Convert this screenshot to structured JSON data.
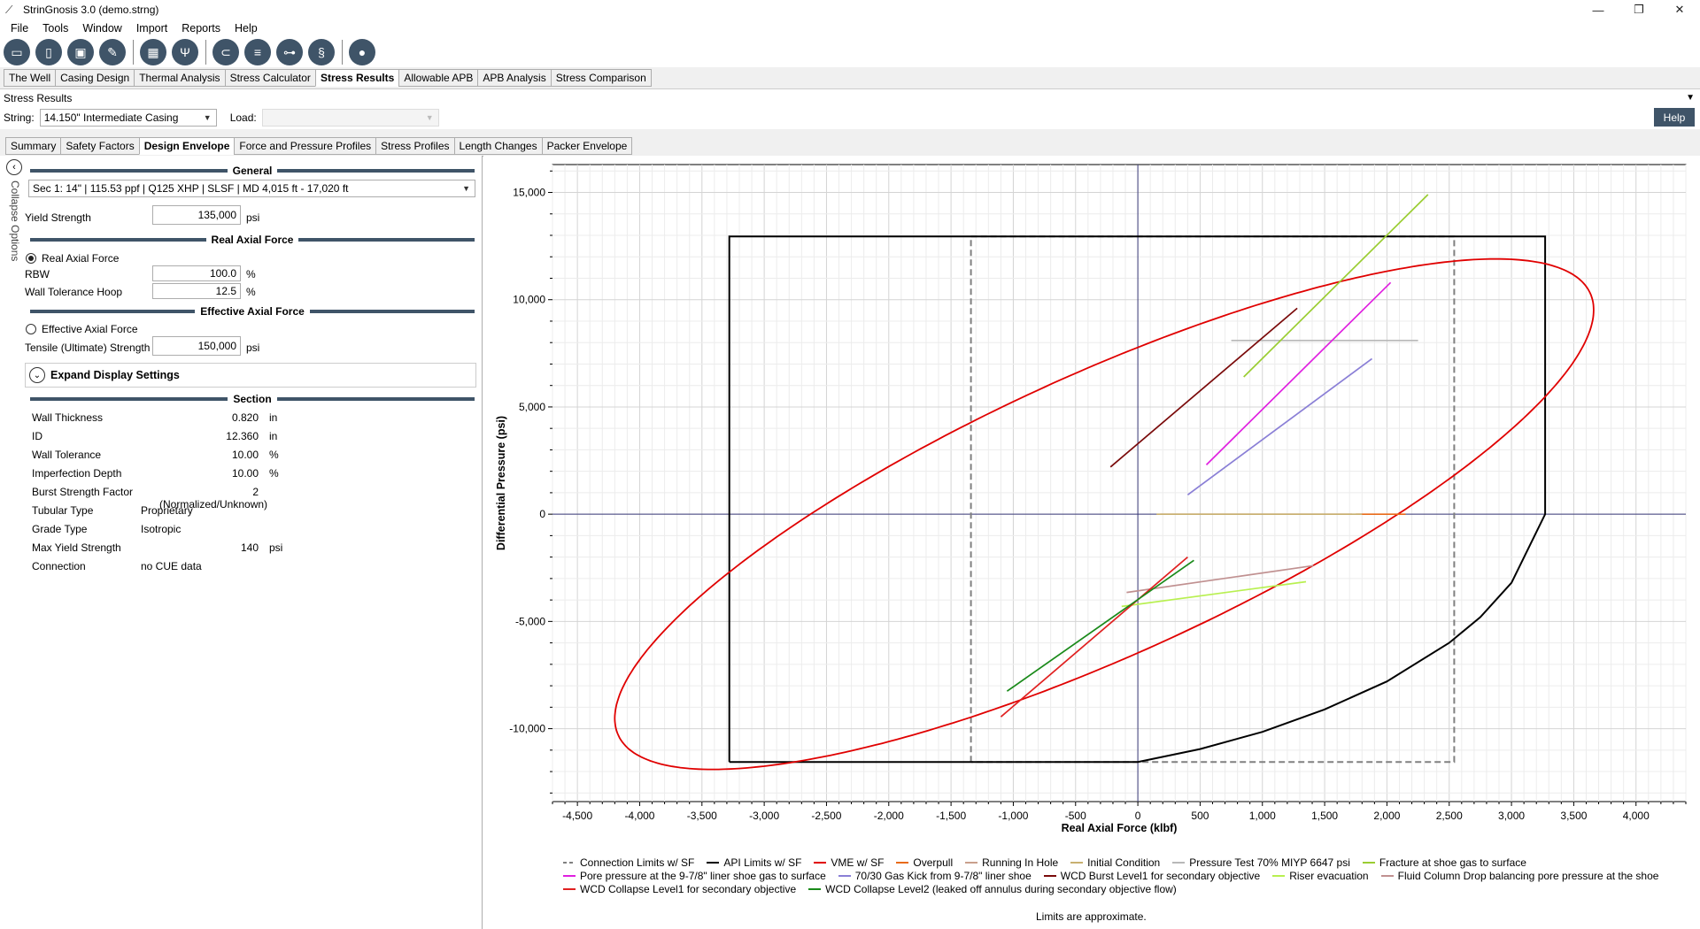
{
  "window": {
    "title": "StrinGnosis 3.0 (demo.strng)",
    "minimize": "—",
    "maximize": "❐",
    "close": "✕"
  },
  "menu": [
    "File",
    "Tools",
    "Window",
    "Import",
    "Reports",
    "Help"
  ],
  "toolbar_icons": [
    "open-file-icon",
    "new-file-icon",
    "save-icon",
    "edit-icon",
    "calculator-icon",
    "tools-icon",
    "casing-icon",
    "stack-icon",
    "connection-icon",
    "coil-icon",
    "droplet-icon"
  ],
  "main_tabs": [
    "The Well",
    "Casing Design",
    "Thermal Analysis",
    "Stress Calculator",
    "Stress Results",
    "Allowable APB",
    "APB Analysis",
    "Stress Comparison"
  ],
  "main_tab_active": "Stress Results",
  "panel": {
    "title": "Stress Results",
    "string_label": "String:",
    "string_value": "14.150\" Intermediate Casing",
    "load_label": "Load:",
    "load_value": "",
    "help": "Help"
  },
  "sub_tabs": [
    "Summary",
    "Safety Factors",
    "Design Envelope",
    "Force and Pressure Profiles",
    "Stress Profiles",
    "Length Changes",
    "Packer Envelope"
  ],
  "sub_tab_active": "Design Envelope",
  "options": {
    "collapse_label": "Collapse Options",
    "general_header": "General",
    "section_select": "Sec 1: 14\" | 115.53 ppf | Q125 XHP | SLSF | MD 4,015 ft - 17,020 ft",
    "yield_strength_label": "Yield Strength",
    "yield_strength_value": "135,000",
    "yield_strength_unit": "psi",
    "real_axial_header": "Real Axial Force",
    "real_axial_radio": "Real Axial Force",
    "rbw_label": "RBW",
    "rbw_value": "100.0",
    "rbw_unit": "%",
    "wall_tol_hoop_label": "Wall Tolerance Hoop",
    "wall_tol_hoop_value": "12.5",
    "wall_tol_hoop_unit": "%",
    "effective_axial_header": "Effective Axial Force",
    "effective_axial_radio": "Effective Axial Force",
    "tensile_label": "Tensile (Ultimate) Strength",
    "tensile_value": "150,000",
    "tensile_unit": "psi",
    "expand_display": "Expand Display Settings",
    "section_header": "Section"
  },
  "section_props": [
    {
      "label": "Wall Thickness",
      "value": "0.820",
      "unit": "in"
    },
    {
      "label": "ID",
      "value": "12.360",
      "unit": "in"
    },
    {
      "label": "Wall Tolerance",
      "value": "10.00",
      "unit": "%"
    },
    {
      "label": "Imperfection Depth",
      "value": "10.00",
      "unit": "%"
    },
    {
      "label": "Burst Strength Factor",
      "value": "2 (Normalized/Unknown)",
      "unit": ""
    },
    {
      "label": "Tubular Type",
      "value": "Proprietary",
      "unit": ""
    },
    {
      "label": "Grade Type",
      "value": "Isotropic",
      "unit": ""
    },
    {
      "label": "Max Yield Strength",
      "value": "140",
      "unit": "psi"
    },
    {
      "label": "Connection",
      "value": "no CUE data",
      "unit": ""
    }
  ],
  "chart_data": {
    "type": "line",
    "xlabel": "Real Axial Force (klbf)",
    "ylabel": "Differential Pressure (psi)",
    "xlim": [
      -4700,
      4400
    ],
    "ylim": [
      -13400,
      16300
    ],
    "xticks": [
      -4500,
      -4000,
      -3500,
      -3000,
      -2500,
      -2000,
      -1500,
      -1000,
      -500,
      0,
      500,
      1000,
      1500,
      2000,
      2500,
      3000,
      3500,
      4000
    ],
    "xtick_labels": [
      "-4,500",
      "-4,000",
      "-3,500",
      "-3,000",
      "-2,500",
      "-2,000",
      "-1,500",
      "-1,000",
      "-500",
      "0",
      "500",
      "1,000",
      "1,500",
      "2,000",
      "2,500",
      "3,000",
      "3,500",
      "4,000"
    ],
    "yticks": [
      15000,
      10000,
      5000,
      0,
      -5000,
      -10000
    ],
    "ytick_labels": [
      "15,000",
      "10,000",
      "5,000",
      "0",
      "-5,000",
      "-10,000"
    ],
    "grid": true,
    "legend_position": "bottom",
    "series": [
      {
        "name": "Connection Limits w/ SF",
        "color": "#808080",
        "style": "dashed",
        "x": [
          -1340,
          -1340,
          2540,
          2540,
          -1340
        ],
        "y": [
          -11550,
          12950,
          12950,
          -11550,
          -11550
        ]
      },
      {
        "name": "API Limits w/ SF",
        "color": "#000000",
        "style": "solid",
        "x": [
          -3280,
          -3280,
          3270,
          3270,
          3000,
          2750,
          2500,
          2000,
          1500,
          1000,
          500,
          0,
          -3280
        ],
        "y": [
          -11550,
          12950,
          12950,
          0,
          -3200,
          -4800,
          -6000,
          -7800,
          -9100,
          -10150,
          -10950,
          -11550,
          -11550
        ]
      },
      {
        "name": "VME w/ SF",
        "color": "#e00000",
        "style": "ellipse",
        "cx": -270,
        "cy": 0,
        "a": 3930,
        "b": 11900,
        "c": 0.8
      },
      {
        "name": "Overpull",
        "color": "#e86b1a",
        "style": "solid",
        "x": [
          1750,
          2150
        ],
        "y": [
          0,
          0
        ]
      },
      {
        "name": "Running In Hole",
        "color": "#c9a08c",
        "style": "solid",
        "x": [
          180,
          1720
        ],
        "y": [
          0,
          0
        ]
      },
      {
        "name": "Initial Condition",
        "color": "#c8b070",
        "style": "solid",
        "x": [
          150,
          1800
        ],
        "y": [
          0,
          0
        ]
      },
      {
        "name": "Pressure Test 70% MIYP 6647 psi",
        "color": "#b8b8b8",
        "style": "solid",
        "x": [
          750,
          2250
        ],
        "y": [
          8100,
          8100
        ]
      },
      {
        "name": "Fracture at shoe gas to surface",
        "color": "#9acd32",
        "style": "solid",
        "x": [
          850,
          2330
        ],
        "y": [
          6400,
          14900
        ]
      },
      {
        "name": "Pore pressure at the 9-7/8\" liner shoe gas to surface",
        "color": "#e020e0",
        "style": "solid",
        "x": [
          550,
          2030
        ],
        "y": [
          2300,
          10800
        ]
      },
      {
        "name": "70/30 Gas Kick from 9-7/8\" liner shoe",
        "color": "#8a7fd6",
        "style": "solid",
        "x": [
          400,
          1880
        ],
        "y": [
          900,
          7250
        ]
      },
      {
        "name": "WCD Burst Level1 for secondary objective",
        "color": "#7a0a0a",
        "style": "solid",
        "x": [
          -220,
          1280
        ],
        "y": [
          2200,
          9600
        ]
      },
      {
        "name": "Riser evacuation",
        "color": "#b8f050",
        "style": "solid",
        "x": [
          -130,
          1350
        ],
        "y": [
          -4300,
          -3150
        ]
      },
      {
        "name": "Fluid Column Drop balancing pore pressure at the shoe",
        "color": "#c09090",
        "style": "solid",
        "x": [
          -90,
          1410
        ],
        "y": [
          -3650,
          -2400
        ]
      },
      {
        "name": "WCD Collapse Level1 for secondary objective",
        "color": "#e02020",
        "style": "solid",
        "x": [
          -1100,
          400
        ],
        "y": [
          -9450,
          -2000
        ]
      },
      {
        "name": "WCD Collapse Level2 (leaked off annulus during secondary objective flow)",
        "color": "#1a8a1a",
        "style": "solid",
        "x": [
          -1050,
          450
        ],
        "y": [
          -8250,
          -2150
        ]
      }
    ],
    "note": "Limits are approximate."
  }
}
